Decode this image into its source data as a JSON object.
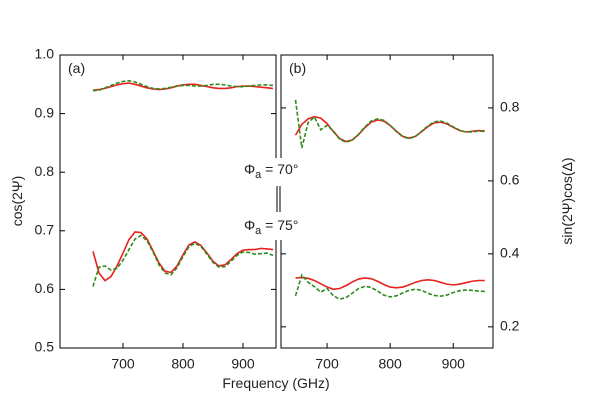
{
  "xlabel": "Frequency (GHz)",
  "ylabel": "cos(2Ψ)",
  "y2label": "sin(2Ψ)cos(Δ)",
  "annotations": [
    {
      "symbol": "Φ",
      "sub": "a",
      "text": " = 70°"
    },
    {
      "symbol": "Φ",
      "sub": "a",
      "text": " = 75°"
    }
  ],
  "chart_data": [
    {
      "type": "line",
      "panel_label": "(a)",
      "x": [
        650,
        660,
        670,
        680,
        690,
        700,
        710,
        720,
        730,
        740,
        750,
        760,
        770,
        780,
        790,
        800,
        810,
        820,
        830,
        840,
        850,
        860,
        870,
        880,
        890,
        900,
        910,
        920,
        930,
        940,
        950
      ],
      "xlim": [
        595,
        955
      ],
      "xticks": [
        700,
        800,
        900
      ],
      "ylim": [
        0.5,
        1.0
      ],
      "yticks": [
        0.5,
        0.6,
        0.7,
        0.8,
        0.9,
        {
          "value": 1.0,
          "label": "1.0"
        }
      ],
      "series": [
        {
          "color": "#e8211d",
          "dash": false,
          "values": [
            0.94,
            0.941,
            0.943,
            0.946,
            0.949,
            0.951,
            0.952,
            0.95,
            0.947,
            0.944,
            0.942,
            0.941,
            0.942,
            0.944,
            0.947,
            0.949,
            0.95,
            0.95,
            0.948,
            0.946,
            0.944,
            0.943,
            0.943,
            0.944,
            0.946,
            0.947,
            0.947,
            0.946,
            0.945,
            0.944,
            0.943
          ]
        },
        {
          "color": "#2e8b1e",
          "dash": true,
          "values": [
            0.939,
            0.94,
            0.944,
            0.948,
            0.952,
            0.955,
            0.956,
            0.954,
            0.95,
            0.946,
            0.943,
            0.942,
            0.943,
            0.945,
            0.947,
            0.948,
            0.948,
            0.947,
            0.947,
            0.948,
            0.95,
            0.95,
            0.949,
            0.947,
            0.946,
            0.946,
            0.947,
            0.948,
            0.949,
            0.949,
            0.948
          ]
        },
        {
          "color": "#e8211d",
          "dash": false,
          "values": [
            0.665,
            0.628,
            0.615,
            0.622,
            0.64,
            0.662,
            0.685,
            0.698,
            0.697,
            0.686,
            0.666,
            0.645,
            0.631,
            0.629,
            0.64,
            0.659,
            0.676,
            0.681,
            0.675,
            0.662,
            0.648,
            0.64,
            0.642,
            0.651,
            0.661,
            0.667,
            0.668,
            0.668,
            0.67,
            0.669,
            0.668
          ]
        },
        {
          "color": "#2e8b1e",
          "dash": true,
          "values": [
            0.605,
            0.638,
            0.64,
            0.633,
            0.636,
            0.65,
            0.668,
            0.686,
            0.692,
            0.683,
            0.664,
            0.642,
            0.628,
            0.625,
            0.637,
            0.656,
            0.673,
            0.679,
            0.673,
            0.66,
            0.646,
            0.638,
            0.639,
            0.648,
            0.658,
            0.664,
            0.663,
            0.66,
            0.661,
            0.662,
            0.658
          ]
        }
      ]
    },
    {
      "type": "line",
      "panel_label": "(b)",
      "x": [
        650,
        660,
        670,
        680,
        690,
        700,
        710,
        720,
        730,
        740,
        750,
        760,
        770,
        780,
        790,
        800,
        810,
        820,
        830,
        840,
        850,
        860,
        870,
        880,
        890,
        900,
        910,
        920,
        930,
        940,
        950
      ],
      "xlim": [
        627,
        963
      ],
      "xticks": [
        700,
        800,
        900
      ],
      "y2lim": [
        0.142,
        0.945
      ],
      "y2ticks": [
        0.2,
        0.4,
        0.6,
        0.8
      ],
      "series": [
        {
          "color": "#e8211d",
          "dash": false,
          "axis": "y2",
          "values": [
            0.725,
            0.755,
            0.77,
            0.776,
            0.772,
            0.757,
            0.735,
            0.716,
            0.708,
            0.712,
            0.727,
            0.746,
            0.761,
            0.767,
            0.764,
            0.752,
            0.736,
            0.722,
            0.717,
            0.722,
            0.735,
            0.749,
            0.759,
            0.761,
            0.756,
            0.747,
            0.738,
            0.734,
            0.736,
            0.738,
            0.737
          ]
        },
        {
          "color": "#2e8b1e",
          "dash": true,
          "axis": "y2",
          "values": [
            0.822,
            0.69,
            0.76,
            0.775,
            0.74,
            0.752,
            0.737,
            0.714,
            0.706,
            0.712,
            0.728,
            0.748,
            0.764,
            0.77,
            0.766,
            0.752,
            0.735,
            0.721,
            0.716,
            0.722,
            0.736,
            0.751,
            0.762,
            0.764,
            0.758,
            0.748,
            0.739,
            0.734,
            0.734,
            0.737,
            0.735
          ]
        },
        {
          "color": "#e8211d",
          "dash": false,
          "axis": "y2",
          "values": [
            0.334,
            0.335,
            0.333,
            0.327,
            0.318,
            0.309,
            0.303,
            0.305,
            0.313,
            0.323,
            0.331,
            0.334,
            0.332,
            0.325,
            0.316,
            0.309,
            0.307,
            0.309,
            0.315,
            0.322,
            0.327,
            0.329,
            0.327,
            0.322,
            0.317,
            0.315,
            0.317,
            0.321,
            0.325,
            0.327,
            0.327
          ]
        },
        {
          "color": "#2e8b1e",
          "dash": true,
          "axis": "y2",
          "values": [
            0.285,
            0.342,
            0.322,
            0.31,
            0.295,
            0.305,
            0.285,
            0.276,
            0.28,
            0.292,
            0.305,
            0.311,
            0.308,
            0.298,
            0.287,
            0.282,
            0.285,
            0.293,
            0.3,
            0.303,
            0.3,
            0.292,
            0.286,
            0.284,
            0.287,
            0.294,
            0.299,
            0.301,
            0.3,
            0.298,
            0.297
          ]
        }
      ]
    }
  ]
}
